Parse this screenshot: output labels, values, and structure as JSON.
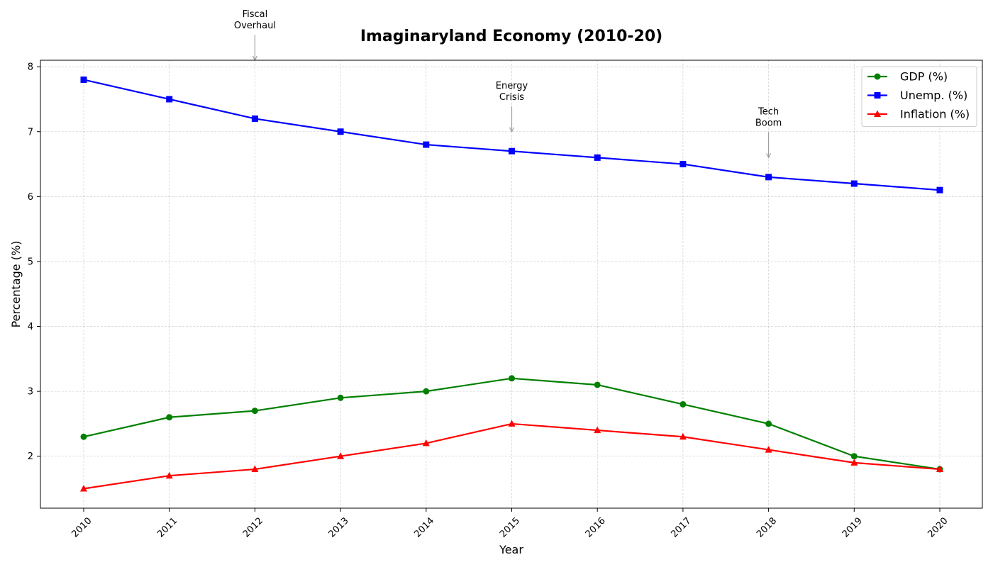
{
  "chart_data": {
    "type": "line",
    "title": "Imaginaryland Economy (2010-20)",
    "xlabel": "Year",
    "ylabel": "Percentage (%)",
    "x": [
      "2010",
      "2011",
      "2012",
      "2013",
      "2014",
      "2015",
      "2016",
      "2017",
      "2018",
      "2019",
      "2020"
    ],
    "ylim": [
      1.2,
      8.1
    ],
    "yticks": [
      "2",
      "3",
      "4",
      "5",
      "6",
      "7",
      "8"
    ],
    "grid": true,
    "legend_position": "top-right",
    "series": [
      {
        "name": "GDP (%)",
        "color": "#008000",
        "marker": "circle",
        "values": [
          2.3,
          2.6,
          2.7,
          2.9,
          3.0,
          3.2,
          3.1,
          2.8,
          2.5,
          2.0,
          1.8
        ]
      },
      {
        "name": "Unemp. (%)",
        "color": "#0000ff",
        "marker": "square",
        "values": [
          7.8,
          7.5,
          7.2,
          7.0,
          6.8,
          6.7,
          6.6,
          6.5,
          6.3,
          6.2,
          6.1
        ]
      },
      {
        "name": "Inflation (%)",
        "color": "#ff0000",
        "marker": "triangle",
        "values": [
          1.5,
          1.7,
          1.8,
          2.0,
          2.2,
          2.5,
          2.4,
          2.3,
          2.1,
          1.9,
          1.8
        ]
      }
    ],
    "annotations": [
      {
        "lines": [
          "Fiscal",
          "Overhaul"
        ],
        "x": "2012",
        "y": 8.1
      },
      {
        "lines": [
          "Energy",
          "Crisis"
        ],
        "x": "2015",
        "y": 7.0
      },
      {
        "lines": [
          "Tech",
          "Boom"
        ],
        "x": "2018",
        "y": 6.6
      }
    ]
  }
}
